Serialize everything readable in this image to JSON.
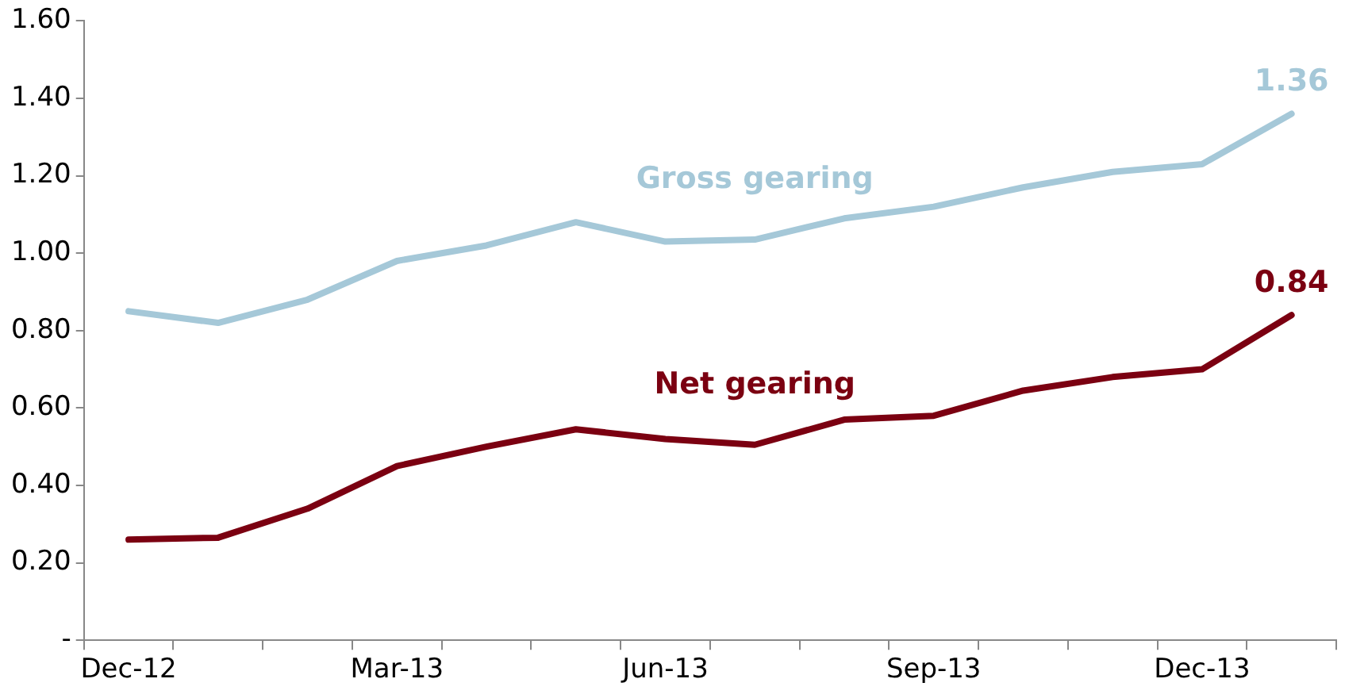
{
  "chart_data": {
    "type": "line",
    "categories": [
      "Dec-12",
      null,
      null,
      "Mar-13",
      null,
      null,
      "Jun-13",
      null,
      null,
      "Sep-13",
      null,
      null,
      "Dec-13",
      null
    ],
    "series": [
      {
        "name": "Gross gearing",
        "color": "#a5c8d8",
        "values": [
          0.85,
          0.82,
          0.88,
          0.98,
          1.02,
          1.08,
          1.03,
          1.035,
          1.09,
          1.12,
          1.17,
          1.21,
          1.23,
          1.36
        ],
        "value_labels": [
          null,
          null,
          null,
          null,
          null,
          null,
          null,
          null,
          null,
          null,
          null,
          null,
          null,
          "1.36"
        ]
      },
      {
        "name": "Net gearing",
        "color": "#7b0011",
        "values": [
          0.26,
          0.265,
          0.34,
          0.45,
          0.5,
          0.545,
          0.52,
          0.505,
          0.57,
          0.58,
          0.645,
          0.68,
          0.7,
          0.84
        ],
        "value_labels": [
          null,
          null,
          null,
          null,
          null,
          null,
          null,
          null,
          null,
          null,
          null,
          null,
          null,
          "0.84"
        ]
      }
    ],
    "ylim": [
      0,
      1.6
    ],
    "yticks": [
      {
        "value": 0,
        "label": "-"
      },
      {
        "value": 0.2,
        "label": "0.20"
      },
      {
        "value": 0.4,
        "label": "0.40"
      },
      {
        "value": 0.6,
        "label": "0.60"
      },
      {
        "value": 0.8,
        "label": "0.80"
      },
      {
        "value": 1,
        "label": "1.00"
      },
      {
        "value": 1.2,
        "label": "1.20"
      },
      {
        "value": 1.4,
        "label": "1.40"
      },
      {
        "value": 1.6,
        "label": "1.60"
      }
    ],
    "grid": false,
    "legend": false,
    "marker": "none",
    "line_style": "solid"
  }
}
